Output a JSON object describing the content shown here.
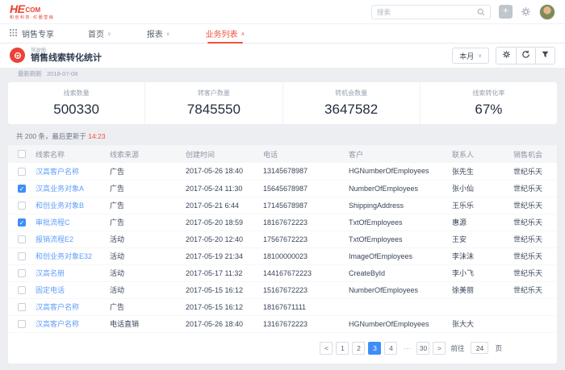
{
  "header": {
    "logo_he": "HE",
    "logo_com": "COM",
    "logo_tagline": "和创科技·红圈营销",
    "search_placeholder": "搜索"
  },
  "nav": {
    "app_label": "销售专享",
    "tabs": [
      {
        "label": "首页",
        "active": false
      },
      {
        "label": "报表",
        "active": false
      },
      {
        "label": "业务列表",
        "active": true
      }
    ],
    "chevron_down": "∨",
    "chevron_up": "∧"
  },
  "page": {
    "category": "驾驶舱",
    "title": "销售线索转化统计",
    "period_selector": "本月",
    "refresh_label": "最新刷新",
    "refresh_date": "2018-07-08"
  },
  "stats": [
    {
      "label": "线索数量",
      "value": "500330"
    },
    {
      "label": "转客户数量",
      "value": "7845550"
    },
    {
      "label": "转机会数量",
      "value": "3647582"
    },
    {
      "label": "线索转化率",
      "value": "67%"
    }
  ],
  "table": {
    "summary_prefix": "共 200 条，最后更新于 ",
    "summary_time": "14:23",
    "columns": [
      "线索名称",
      "线索来源",
      "创建时间",
      "电话",
      "客户",
      "联系人",
      "销售机会"
    ],
    "rows": [
      {
        "checked": false,
        "name": "汉高客户名称",
        "source": "广告",
        "created": "2017-05-26 18:40",
        "phone": "13145678987",
        "customer": "HGNumberOfEmployees",
        "contact": "张先生",
        "opportunity": "世纪乐天"
      },
      {
        "checked": true,
        "name": "汉高业务对象A",
        "source": "广告",
        "created": "2017-05-24 11:30",
        "phone": "15645678987",
        "customer": "NumberOfEmployees",
        "contact": "张小仙",
        "opportunity": "世纪乐天"
      },
      {
        "checked": false,
        "name": "和创业务对象B",
        "source": "广告",
        "created": "2017-05-21 6:44",
        "phone": "17145678987",
        "customer": "ShippingAddress",
        "contact": "王乐乐",
        "opportunity": "世纪乐天"
      },
      {
        "checked": true,
        "name": "审批流程C",
        "source": "广告",
        "created": "2017-05-20 18:59",
        "phone": "18167672223",
        "customer": "TxtOfEmployees",
        "contact": "惠源",
        "opportunity": "世纪乐天"
      },
      {
        "checked": false,
        "name": "报销流程E2",
        "source": "活动",
        "created": "2017-05-20 12:40",
        "phone": "17567672223",
        "customer": "TxtOfEmployees",
        "contact": "王安",
        "opportunity": "世纪乐天"
      },
      {
        "checked": false,
        "name": "和创业务对象E32",
        "source": "活动",
        "created": "2017-05-19 21:34",
        "phone": "18100000023",
        "customer": "ImageOfEmployees",
        "contact": "李沫沫",
        "opportunity": "世纪乐天"
      },
      {
        "checked": false,
        "name": "汉高名册",
        "source": "活动",
        "created": "2017-05-17 11:32",
        "phone": "144167672223",
        "customer": "CreateById",
        "contact": "李小飞",
        "opportunity": "世纪乐天"
      },
      {
        "checked": false,
        "name": "固定电话",
        "source": "活动",
        "created": "2017-05-15 16:12",
        "phone": "15167672223",
        "customer": "NumberOfEmployees",
        "contact": "徐美丽",
        "opportunity": "世纪乐天"
      },
      {
        "checked": false,
        "name": "汉高客户名称",
        "source": "广告",
        "created": "2017-05-15 16:12",
        "phone": "18167671111",
        "customer": "",
        "contact": "",
        "opportunity": ""
      },
      {
        "checked": false,
        "name": "汉高客户名称",
        "source": "电话直销",
        "created": "2017-05-26 18:40",
        "phone": "13167672223",
        "customer": "HGNumberOfEmployees",
        "contact": "张大大",
        "opportunity": ""
      }
    ],
    "pagination": {
      "prev": "<",
      "next": ">",
      "pages": [
        "1",
        "2",
        "3",
        "4",
        "···",
        "30"
      ],
      "active": "3",
      "jump_before": "前往",
      "jump_value": "24",
      "jump_after": "页"
    }
  }
}
